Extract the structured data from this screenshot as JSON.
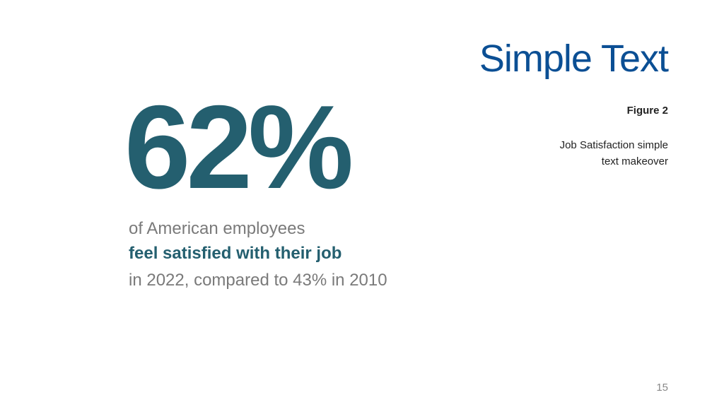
{
  "header": {
    "title": "Simple Text"
  },
  "figure": {
    "label": "Figure 2",
    "caption": [
      "Job Satisfaction simple",
      "text makeover"
    ]
  },
  "statistic": {
    "value": "62%",
    "lines": [
      "of American employees",
      "feel satisfied with their job",
      "in 2022, compared to 43% in 2010"
    ]
  },
  "footer": {
    "page_number": "15"
  }
}
